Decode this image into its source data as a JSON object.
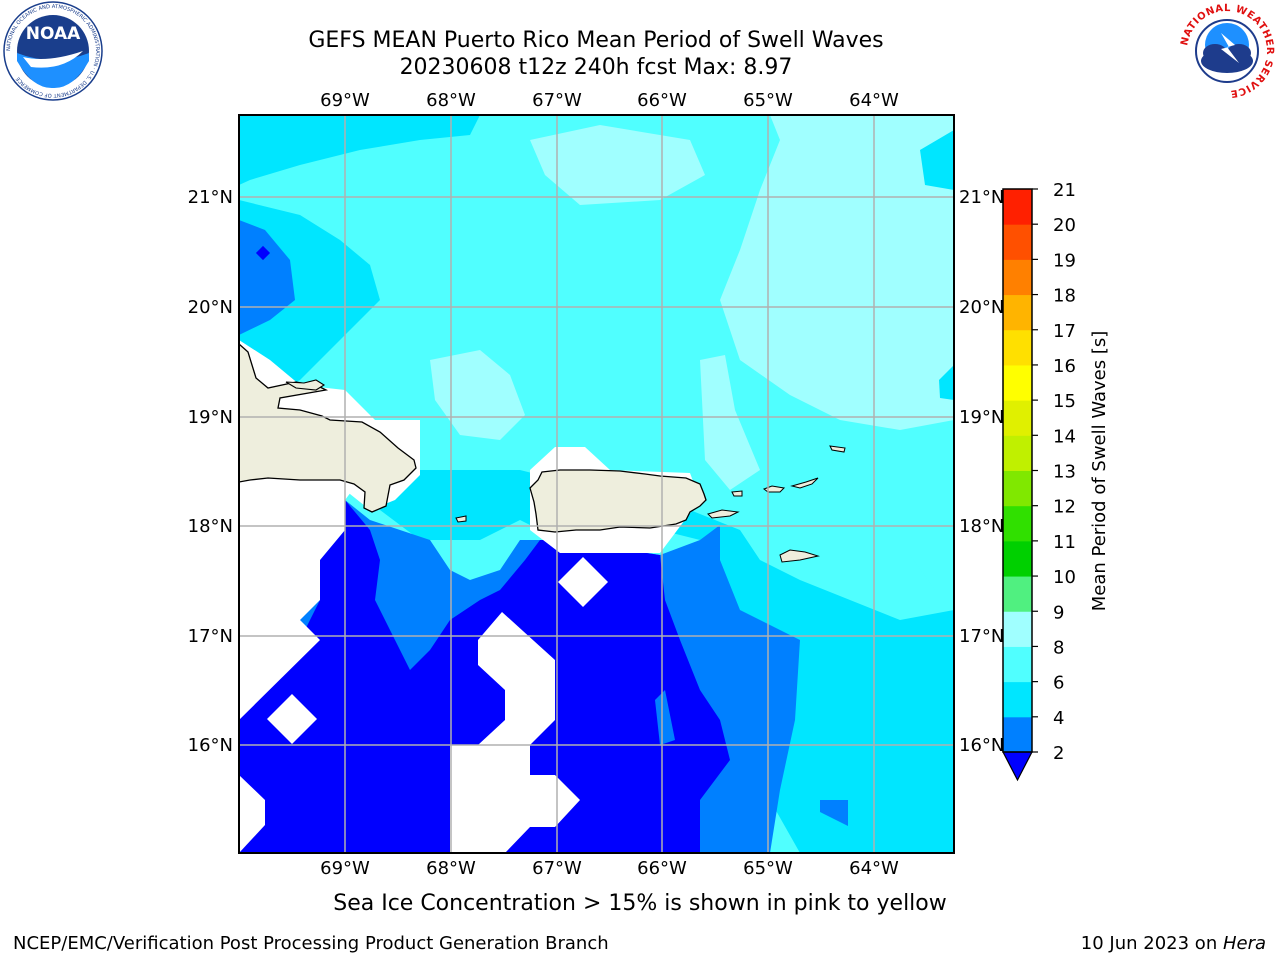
{
  "title_line1": "GEFS MEAN Puerto Rico Mean Period of Swell Waves",
  "title_line2": "20230608 t12z 240h fcst   Max: 8.97",
  "logos": {
    "left": {
      "name": "noaa-logo",
      "text": "NOAA",
      "ring_text": "NATIONAL OCEANIC AND ATMOSPHERIC ADMINISTRATION · U.S. DEPARTMENT OF COMMERCE"
    },
    "right": {
      "name": "nws-logo",
      "ring_text": "NATIONAL WEATHER SERVICE"
    }
  },
  "map": {
    "lon_ticks": [
      "69°W",
      "68°W",
      "67°W",
      "66°W",
      "65°W",
      "64°W"
    ],
    "lat_ticks": [
      "21°N",
      "20°N",
      "19°N",
      "18°N",
      "17°N",
      "16°N"
    ],
    "extent": {
      "lon": [
        -70.0,
        -63.25
      ],
      "lat": [
        15.0,
        21.75
      ]
    },
    "land_color": "#eeeedd",
    "grid_color": "#b0b0b0"
  },
  "colorbar": {
    "label": "Mean Period of Swell Waves [s]",
    "tick_labels": [
      "2",
      "4",
      "6",
      "8",
      "9",
      "10",
      "11",
      "12",
      "13",
      "14",
      "15",
      "16",
      "17",
      "18",
      "19",
      "20",
      "21"
    ],
    "colors": [
      "#0080ff",
      "#00e6ff",
      "#50ffff",
      "#a0ffff",
      "#50f080",
      "#00d000",
      "#30e000",
      "#80e800",
      "#c0f000",
      "#e0f000",
      "#ffff00",
      "#ffe000",
      "#ffb400",
      "#ff8000",
      "#ff5000",
      "#ff2000",
      "#ff0000"
    ],
    "under_color": "#0000ff",
    "no_data_color": "#ffffff"
  },
  "ice_note": "Sea Ice Concentration > 15% is shown in pink to yellow",
  "footer_left": "NCEP/EMC/Verification Post Processing Product Generation Branch",
  "footer_right_date": "10 Jun 2023 on ",
  "footer_right_host": "Hera"
}
